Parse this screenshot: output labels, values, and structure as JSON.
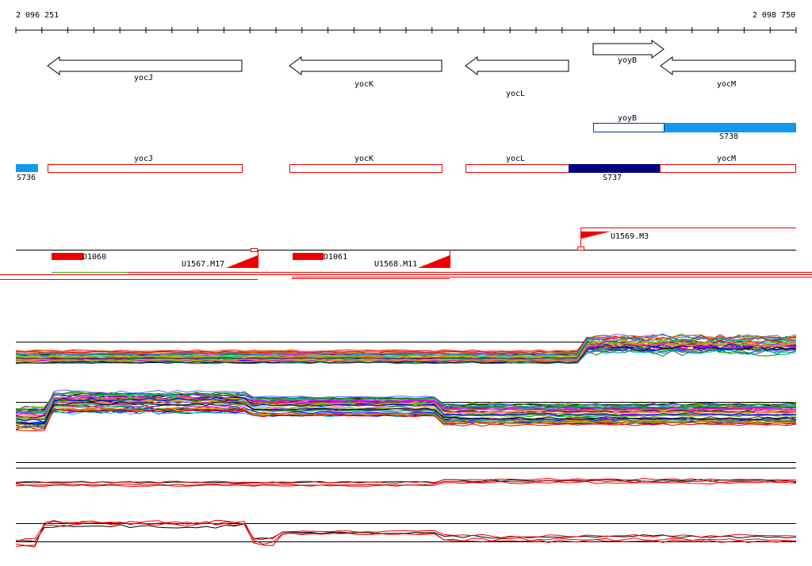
{
  "ruler": {
    "start": "2 096 251",
    "end": "2 098 750"
  },
  "genes": [
    "yocJ",
    "yocK",
    "yocL",
    "yoyB",
    "yocM"
  ],
  "transcripts": {
    "box": "yoyB",
    "segment": "S738"
  },
  "regions": [
    "S736",
    "yocJ",
    "yocK",
    "yocL",
    "S737",
    "yocM"
  ],
  "features": [
    "U1569.M3",
    "D1060",
    "U1567.M17",
    "D1061",
    "U1568.M11"
  ]
}
